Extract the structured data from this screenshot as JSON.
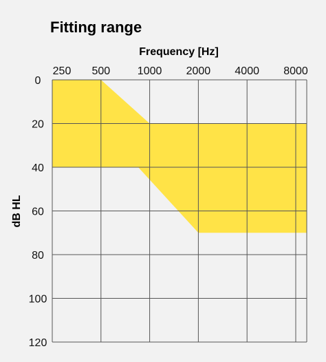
{
  "chart_data": {
    "type": "area",
    "title": "Fitting range",
    "xlabel": "Frequency [Hz]",
    "ylabel": "dB HL",
    "x_scale": "log",
    "x_ticks": [
      250,
      500,
      1000,
      2000,
      4000,
      8000
    ],
    "x_tick_labels": [
      "250",
      "500",
      "1000",
      "2000",
      "4000",
      "8000"
    ],
    "ylim": [
      0,
      120
    ],
    "y_inverted": true,
    "y_ticks": [
      0,
      20,
      40,
      60,
      80,
      100,
      120
    ],
    "y_tick_labels": [
      "0",
      "20",
      "40",
      "60",
      "80",
      "100",
      "120"
    ],
    "grid": true,
    "fill_color": "#ffe347",
    "region": {
      "upper_bound": [
        {
          "x": 250,
          "y": 0
        },
        {
          "x": 500,
          "y": 0
        },
        {
          "x": 1000,
          "y": 20
        },
        {
          "x": 8000,
          "y": 20
        }
      ],
      "lower_bound": [
        {
          "x": 250,
          "y": 40
        },
        {
          "x": 850,
          "y": 40
        },
        {
          "x": 2000,
          "y": 70
        },
        {
          "x": 8000,
          "y": 70
        }
      ]
    }
  }
}
